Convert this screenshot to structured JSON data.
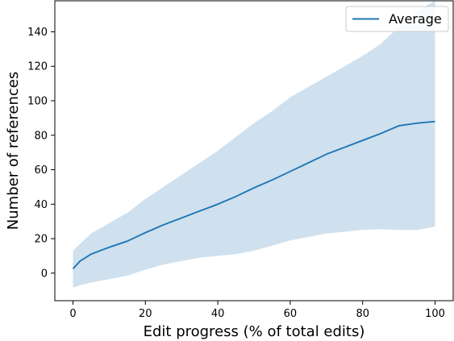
{
  "chart_data": {
    "type": "line",
    "xlabel": "Edit progress (% of total edits)",
    "ylabel": "Number of references",
    "xlim": [
      -5,
      105
    ],
    "ylim": [
      -16,
      158
    ],
    "x_ticks": [
      "0",
      "20",
      "40",
      "60",
      "80",
      "100"
    ],
    "y_ticks": [
      "0",
      "20",
      "40",
      "60",
      "80",
      "100",
      "120",
      "140"
    ],
    "grid": false,
    "legend": {
      "position": "top-right",
      "entries": [
        "Average"
      ]
    },
    "colors": {
      "line": "#1f77b4",
      "band": "#cfe0ee"
    },
    "series": [
      {
        "name": "Average",
        "x": [
          0,
          2,
          5,
          10,
          15,
          20,
          25,
          30,
          35,
          40,
          45,
          50,
          55,
          60,
          65,
          70,
          75,
          80,
          85,
          90,
          95,
          100
        ],
        "values": [
          2.5,
          7,
          11,
          15,
          18.5,
          23.5,
          28,
          32,
          36,
          40,
          44.5,
          49.5,
          54,
          59,
          64,
          69,
          73,
          77,
          81,
          85.5,
          87,
          88
        ]
      }
    ],
    "band": {
      "x": [
        0,
        2,
        5,
        10,
        15,
        20,
        25,
        30,
        35,
        40,
        45,
        50,
        55,
        60,
        65,
        70,
        75,
        80,
        85,
        90,
        95,
        100
      ],
      "lower": [
        -8.5,
        -7,
        -5.5,
        -3.5,
        -1.5,
        2,
        5,
        7,
        9,
        10,
        11,
        13,
        16,
        19,
        21,
        23,
        24,
        25,
        25.5,
        25,
        25,
        27
      ],
      "upper": [
        13,
        17,
        23,
        29,
        35,
        43,
        50,
        57,
        64,
        71,
        79,
        87,
        94,
        102,
        108,
        114,
        120,
        126,
        133,
        143,
        152,
        158
      ]
    }
  }
}
